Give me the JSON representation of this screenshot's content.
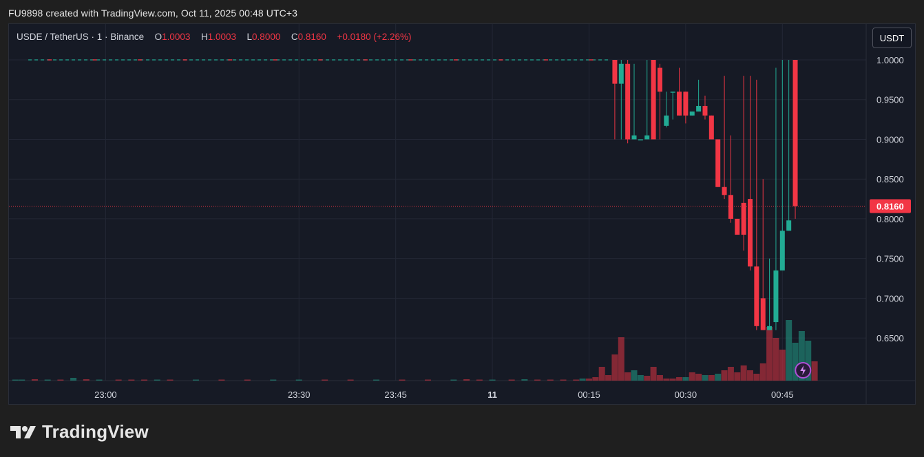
{
  "header": {
    "attribution": "FU9898 created with TradingView.com, Oct 11, 2025 00:48 UTC+3"
  },
  "legend": {
    "symbol": "USDE / TetherUS · 1 · Binance",
    "o_label": "O",
    "o_value": "1.0003",
    "h_label": "H",
    "h_value": "1.0003",
    "l_label": "L",
    "l_value": "0.8000",
    "c_label": "C",
    "c_value": "0.8160",
    "change": "+0.0180 (+2.26%)"
  },
  "currency_button": "USDT",
  "last_price_label": "0.8160",
  "brand": {
    "name": "TradingView",
    "logo_icon": "tradingview-logo-icon"
  },
  "colors": {
    "up": "#22ab94",
    "down": "#f23645",
    "background": "#161a25"
  },
  "chart_data": {
    "type": "candlestick",
    "y_ticks": [
      "1.0000",
      "0.9500",
      "0.9000",
      "0.8500",
      "0.8000",
      "0.7500",
      "0.7000",
      "0.6500"
    ],
    "ylim": [
      0.625,
      1.0
    ],
    "x_ticks": [
      "23:00",
      "23:30",
      "23:45",
      "11",
      "00:15",
      "00:30",
      "00:45"
    ],
    "x_tick_minutes": [
      -60,
      -30,
      -15,
      0,
      15,
      30,
      45
    ],
    "x_range_minutes": [
      -75,
      58
    ],
    "last_price": 0.816,
    "grid": true,
    "flat_region": {
      "from_minute": -72,
      "to_minute": 18,
      "value": 1.0
    },
    "candles": [
      {
        "t": 19,
        "o": 1.0,
        "h": 1.0,
        "l": 0.9,
        "c": 0.97
      },
      {
        "t": 20,
        "o": 0.97,
        "h": 1.0,
        "l": 0.9,
        "c": 0.995
      },
      {
        "t": 21,
        "o": 0.995,
        "h": 1.0,
        "l": 0.895,
        "c": 0.9
      },
      {
        "t": 22,
        "o": 0.9,
        "h": 0.995,
        "l": 0.9,
        "c": 0.905
      },
      {
        "t": 23,
        "o": 0.9,
        "h": 0.9,
        "l": 0.9,
        "c": 0.9
      },
      {
        "t": 24,
        "o": 0.9,
        "h": 1.0,
        "l": 0.9,
        "c": 0.905
      },
      {
        "t": 25,
        "o": 1.0,
        "h": 1.0,
        "l": 0.9,
        "c": 0.9
      },
      {
        "t": 26,
        "o": 0.99,
        "h": 0.995,
        "l": 0.9,
        "c": 0.96
      },
      {
        "t": 27,
        "o": 0.917,
        "h": 0.96,
        "l": 0.915,
        "c": 0.93
      },
      {
        "t": 28,
        "o": 0.96,
        "h": 0.96,
        "l": 0.925,
        "c": 0.96
      },
      {
        "t": 29,
        "o": 0.96,
        "h": 0.99,
        "l": 0.93,
        "c": 0.93
      },
      {
        "t": 30,
        "o": 0.96,
        "h": 0.96,
        "l": 0.92,
        "c": 0.93
      },
      {
        "t": 31,
        "o": 0.93,
        "h": 0.935,
        "l": 0.93,
        "c": 0.935
      },
      {
        "t": 32,
        "o": 0.935,
        "h": 0.975,
        "l": 0.935,
        "c": 0.942
      },
      {
        "t": 33,
        "o": 0.942,
        "h": 0.955,
        "l": 0.925,
        "c": 0.93
      },
      {
        "t": 34,
        "o": 0.93,
        "h": 0.93,
        "l": 0.9,
        "c": 0.9
      },
      {
        "t": 35,
        "o": 0.9,
        "h": 0.9,
        "l": 0.84,
        "c": 0.84
      },
      {
        "t": 36,
        "o": 0.84,
        "h": 0.98,
        "l": 0.825,
        "c": 0.83
      },
      {
        "t": 37,
        "o": 0.83,
        "h": 0.905,
        "l": 0.795,
        "c": 0.8
      },
      {
        "t": 38,
        "o": 0.8,
        "h": 0.8,
        "l": 0.78,
        "c": 0.78
      },
      {
        "t": 39,
        "o": 0.82,
        "h": 0.98,
        "l": 0.76,
        "c": 0.78
      },
      {
        "t": 40,
        "o": 0.825,
        "h": 0.98,
        "l": 0.735,
        "c": 0.74
      },
      {
        "t": 41,
        "o": 0.74,
        "h": 0.975,
        "l": 0.66,
        "c": 0.665
      },
      {
        "t": 42,
        "o": 0.7,
        "h": 0.85,
        "l": 0.66,
        "c": 0.66
      },
      {
        "t": 43,
        "o": 0.66,
        "h": 0.75,
        "l": 0.66,
        "c": 0.665
      },
      {
        "t": 44,
        "o": 0.67,
        "h": 0.99,
        "l": 0.66,
        "c": 0.735
      },
      {
        "t": 45,
        "o": 0.735,
        "h": 1.0,
        "l": 0.735,
        "c": 0.785
      },
      {
        "t": 46,
        "o": 0.785,
        "h": 1.0,
        "l": 0.785,
        "c": 0.798
      },
      {
        "t": 47,
        "o": 1.0,
        "h": 1.0,
        "l": 0.8,
        "c": 0.816
      }
    ],
    "volume": {
      "scale_max": 1,
      "bars": [
        {
          "t": -74,
          "v": 0.01,
          "up": true
        },
        {
          "t": -73,
          "v": 0.01,
          "up": true
        },
        {
          "t": -71,
          "v": 0.02,
          "up": false
        },
        {
          "t": -69,
          "v": 0.01,
          "up": true
        },
        {
          "t": -67,
          "v": 0.01,
          "up": false
        },
        {
          "t": -65,
          "v": 0.04,
          "up": true
        },
        {
          "t": -63,
          "v": 0.02,
          "up": false
        },
        {
          "t": -61,
          "v": 0.01,
          "up": true
        },
        {
          "t": -58,
          "v": 0.01,
          "up": false
        },
        {
          "t": -56,
          "v": 0.01,
          "up": false
        },
        {
          "t": -54,
          "v": 0.01,
          "up": false
        },
        {
          "t": -52,
          "v": 0.01,
          "up": true
        },
        {
          "t": -50,
          "v": 0.01,
          "up": false
        },
        {
          "t": -46,
          "v": 0.01,
          "up": true
        },
        {
          "t": -42,
          "v": 0.01,
          "up": false
        },
        {
          "t": -38,
          "v": 0.01,
          "up": false
        },
        {
          "t": -34,
          "v": 0.01,
          "up": true
        },
        {
          "t": -30,
          "v": 0.01,
          "up": true
        },
        {
          "t": -26,
          "v": 0.01,
          "up": false
        },
        {
          "t": -22,
          "v": 0.01,
          "up": false
        },
        {
          "t": -18,
          "v": 0.01,
          "up": true
        },
        {
          "t": -14,
          "v": 0.01,
          "up": false
        },
        {
          "t": -10,
          "v": 0.01,
          "up": false
        },
        {
          "t": -6,
          "v": 0.01,
          "up": true
        },
        {
          "t": -4,
          "v": 0.02,
          "up": false
        },
        {
          "t": -2,
          "v": 0.01,
          "up": false
        },
        {
          "t": 0,
          "v": 0.01,
          "up": true
        },
        {
          "t": 3,
          "v": 0.01,
          "up": false
        },
        {
          "t": 5,
          "v": 0.02,
          "up": true
        },
        {
          "t": 7,
          "v": 0.01,
          "up": false
        },
        {
          "t": 9,
          "v": 0.01,
          "up": false
        },
        {
          "t": 11,
          "v": 0.01,
          "up": false
        },
        {
          "t": 13,
          "v": 0.01,
          "up": false
        },
        {
          "t": 14,
          "v": 0.03,
          "up": true
        },
        {
          "t": 15,
          "v": 0.03,
          "up": false
        },
        {
          "t": 16,
          "v": 0.05,
          "up": false
        },
        {
          "t": 17,
          "v": 0.2,
          "up": false
        },
        {
          "t": 18,
          "v": 0.08,
          "up": false
        },
        {
          "t": 19,
          "v": 0.38,
          "up": false
        },
        {
          "t": 20,
          "v": 0.63,
          "up": false
        },
        {
          "t": 21,
          "v": 0.12,
          "up": false
        },
        {
          "t": 22,
          "v": 0.15,
          "up": true
        },
        {
          "t": 23,
          "v": 0.08,
          "up": true
        },
        {
          "t": 24,
          "v": 0.07,
          "up": false
        },
        {
          "t": 25,
          "v": 0.2,
          "up": false
        },
        {
          "t": 26,
          "v": 0.08,
          "up": false
        },
        {
          "t": 27,
          "v": 0.03,
          "up": false
        },
        {
          "t": 28,
          "v": 0.03,
          "up": false
        },
        {
          "t": 29,
          "v": 0.05,
          "up": false
        },
        {
          "t": 30,
          "v": 0.05,
          "up": true
        },
        {
          "t": 31,
          "v": 0.12,
          "up": false
        },
        {
          "t": 32,
          "v": 0.1,
          "up": false
        },
        {
          "t": 33,
          "v": 0.08,
          "up": true
        },
        {
          "t": 34,
          "v": 0.08,
          "up": false
        },
        {
          "t": 35,
          "v": 0.1,
          "up": true
        },
        {
          "t": 36,
          "v": 0.15,
          "up": false
        },
        {
          "t": 37,
          "v": 0.2,
          "up": false
        },
        {
          "t": 38,
          "v": 0.12,
          "up": false
        },
        {
          "t": 39,
          "v": 0.22,
          "up": false
        },
        {
          "t": 40,
          "v": 0.15,
          "up": false
        },
        {
          "t": 41,
          "v": 0.1,
          "up": false
        },
        {
          "t": 42,
          "v": 0.25,
          "up": false
        },
        {
          "t": 43,
          "v": 0.78,
          "up": false
        },
        {
          "t": 44,
          "v": 0.62,
          "up": false
        },
        {
          "t": 45,
          "v": 0.45,
          "up": false
        },
        {
          "t": 46,
          "v": 0.88,
          "up": true
        },
        {
          "t": 47,
          "v": 0.55,
          "up": true
        },
        {
          "t": 48,
          "v": 0.72,
          "up": true
        },
        {
          "t": 49,
          "v": 0.58,
          "up": true
        },
        {
          "t": 50,
          "v": 0.28,
          "up": false
        }
      ]
    }
  }
}
